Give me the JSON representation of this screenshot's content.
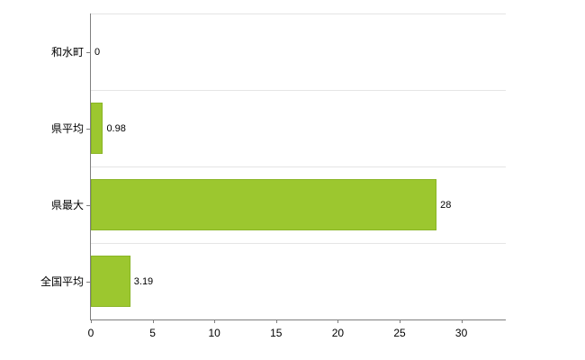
{
  "chart_data": {
    "type": "bar",
    "orientation": "horizontal",
    "title": "",
    "xlabel": "",
    "ylabel": "",
    "categories": [
      "和水町",
      "県平均",
      "県最大",
      "全国平均"
    ],
    "values": [
      0,
      0.98,
      28,
      3.19
    ],
    "value_labels": [
      "0",
      "0.98",
      "28",
      "3.19"
    ],
    "xlim": [
      0,
      33.6
    ],
    "x_ticks": [
      0,
      5,
      10,
      15,
      20,
      25,
      30
    ],
    "grid": true,
    "legend": "none",
    "bar_color": "#9cc72f",
    "bar_border_color": "#8ab526",
    "axis_color": "#7f7f7f",
    "gridline_color": "#e5e5e5",
    "background_color": "#ffffff"
  }
}
